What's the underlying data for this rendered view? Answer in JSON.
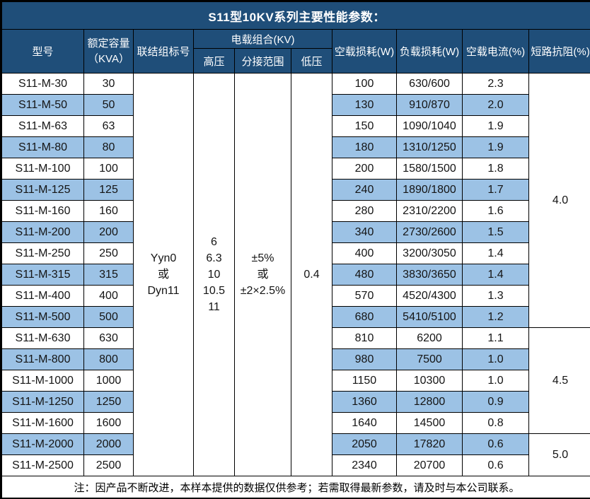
{
  "title": "S11型10KV系列主要性能参数：",
  "columns": {
    "model": "型号",
    "capacity": "额定容量\n（KVA）",
    "connection": "联结组标号",
    "voltage_combo": "电载组合(KV)",
    "hv": "高压",
    "tap_range": "分接范围",
    "lv": "低压",
    "no_load_loss": "空载损耗(W)",
    "load_loss": "负载损耗(W)",
    "no_load_current": "空载电流(%)",
    "impedance": "短路抗阻(%)"
  },
  "merged": {
    "connection_value": "Yyn0\n或\nDyn11",
    "hv_value": "6\n6.3\n10\n10.5\n11",
    "tap_value": "±5%\n或\n±2×2.5%",
    "lv_value": "0.4"
  },
  "rows": [
    {
      "model": "S11-M-30",
      "kva": "30",
      "no_load_loss": "100",
      "load_loss": "630/600",
      "no_load_current": "2.3"
    },
    {
      "model": "S11-M-50",
      "kva": "50",
      "no_load_loss": "130",
      "load_loss": "910/870",
      "no_load_current": "2.0"
    },
    {
      "model": "S11-M-63",
      "kva": "63",
      "no_load_loss": "150",
      "load_loss": "1090/1040",
      "no_load_current": "1.9"
    },
    {
      "model": "S11-M-80",
      "kva": "80",
      "no_load_loss": "180",
      "load_loss": "1310/1250",
      "no_load_current": "1.9"
    },
    {
      "model": "S11-M-100",
      "kva": "100",
      "no_load_loss": "200",
      "load_loss": "1580/1500",
      "no_load_current": "1.8"
    },
    {
      "model": "S11-M-125",
      "kva": "125",
      "no_load_loss": "240",
      "load_loss": "1890/1800",
      "no_load_current": "1.7"
    },
    {
      "model": "S11-M-160",
      "kva": "160",
      "no_load_loss": "280",
      "load_loss": "2310/2200",
      "no_load_current": "1.6"
    },
    {
      "model": "S11-M-200",
      "kva": "200",
      "no_load_loss": "340",
      "load_loss": "2730/2600",
      "no_load_current": "1.5"
    },
    {
      "model": "S11-M-250",
      "kva": "250",
      "no_load_loss": "400",
      "load_loss": "3200/3050",
      "no_load_current": "1.4"
    },
    {
      "model": "S11-M-315",
      "kva": "315",
      "no_load_loss": "480",
      "load_loss": "3830/3650",
      "no_load_current": "1.4"
    },
    {
      "model": "S11-M-400",
      "kva": "400",
      "no_load_loss": "570",
      "load_loss": "4520/4300",
      "no_load_current": "1.3"
    },
    {
      "model": "S11-M-500",
      "kva": "500",
      "no_load_loss": "680",
      "load_loss": "5410/5100",
      "no_load_current": "1.2"
    },
    {
      "model": "S11-M-630",
      "kva": "630",
      "no_load_loss": "810",
      "load_loss": "6200",
      "no_load_current": "1.1"
    },
    {
      "model": "S11-M-800",
      "kva": "800",
      "no_load_loss": "980",
      "load_loss": "7500",
      "no_load_current": "1.0"
    },
    {
      "model": "S11-M-1000",
      "kva": "1000",
      "no_load_loss": "1150",
      "load_loss": "10300",
      "no_load_current": "1.0"
    },
    {
      "model": "S11-M-1250",
      "kva": "1250",
      "no_load_loss": "1360",
      "load_loss": "12800",
      "no_load_current": "0.9"
    },
    {
      "model": "S11-M-1600",
      "kva": "1600",
      "no_load_loss": "1640",
      "load_loss": "14500",
      "no_load_current": "0.8"
    },
    {
      "model": "S11-M-2000",
      "kva": "2000",
      "no_load_loss": "2050",
      "load_loss": "17820",
      "no_load_current": "0.6"
    },
    {
      "model": "S11-M-2500",
      "kva": "2500",
      "no_load_loss": "2340",
      "load_loss": "20700",
      "no_load_current": "0.6"
    }
  ],
  "impedance_groups": [
    {
      "value": "4.0",
      "span": 12
    },
    {
      "value": "4.5",
      "span": 5
    },
    {
      "value": "5.0",
      "span": 2
    }
  ],
  "footer_note": "注：因产品不断改进，本样本提供的数据仅供参考；若需取得最新参数，请及时与本公司联系。",
  "colors": {
    "header_bg": "#1F4E79",
    "stripe_bg": "#9CC2E5",
    "border": "#000000",
    "header_text": "#FFFFFF"
  }
}
